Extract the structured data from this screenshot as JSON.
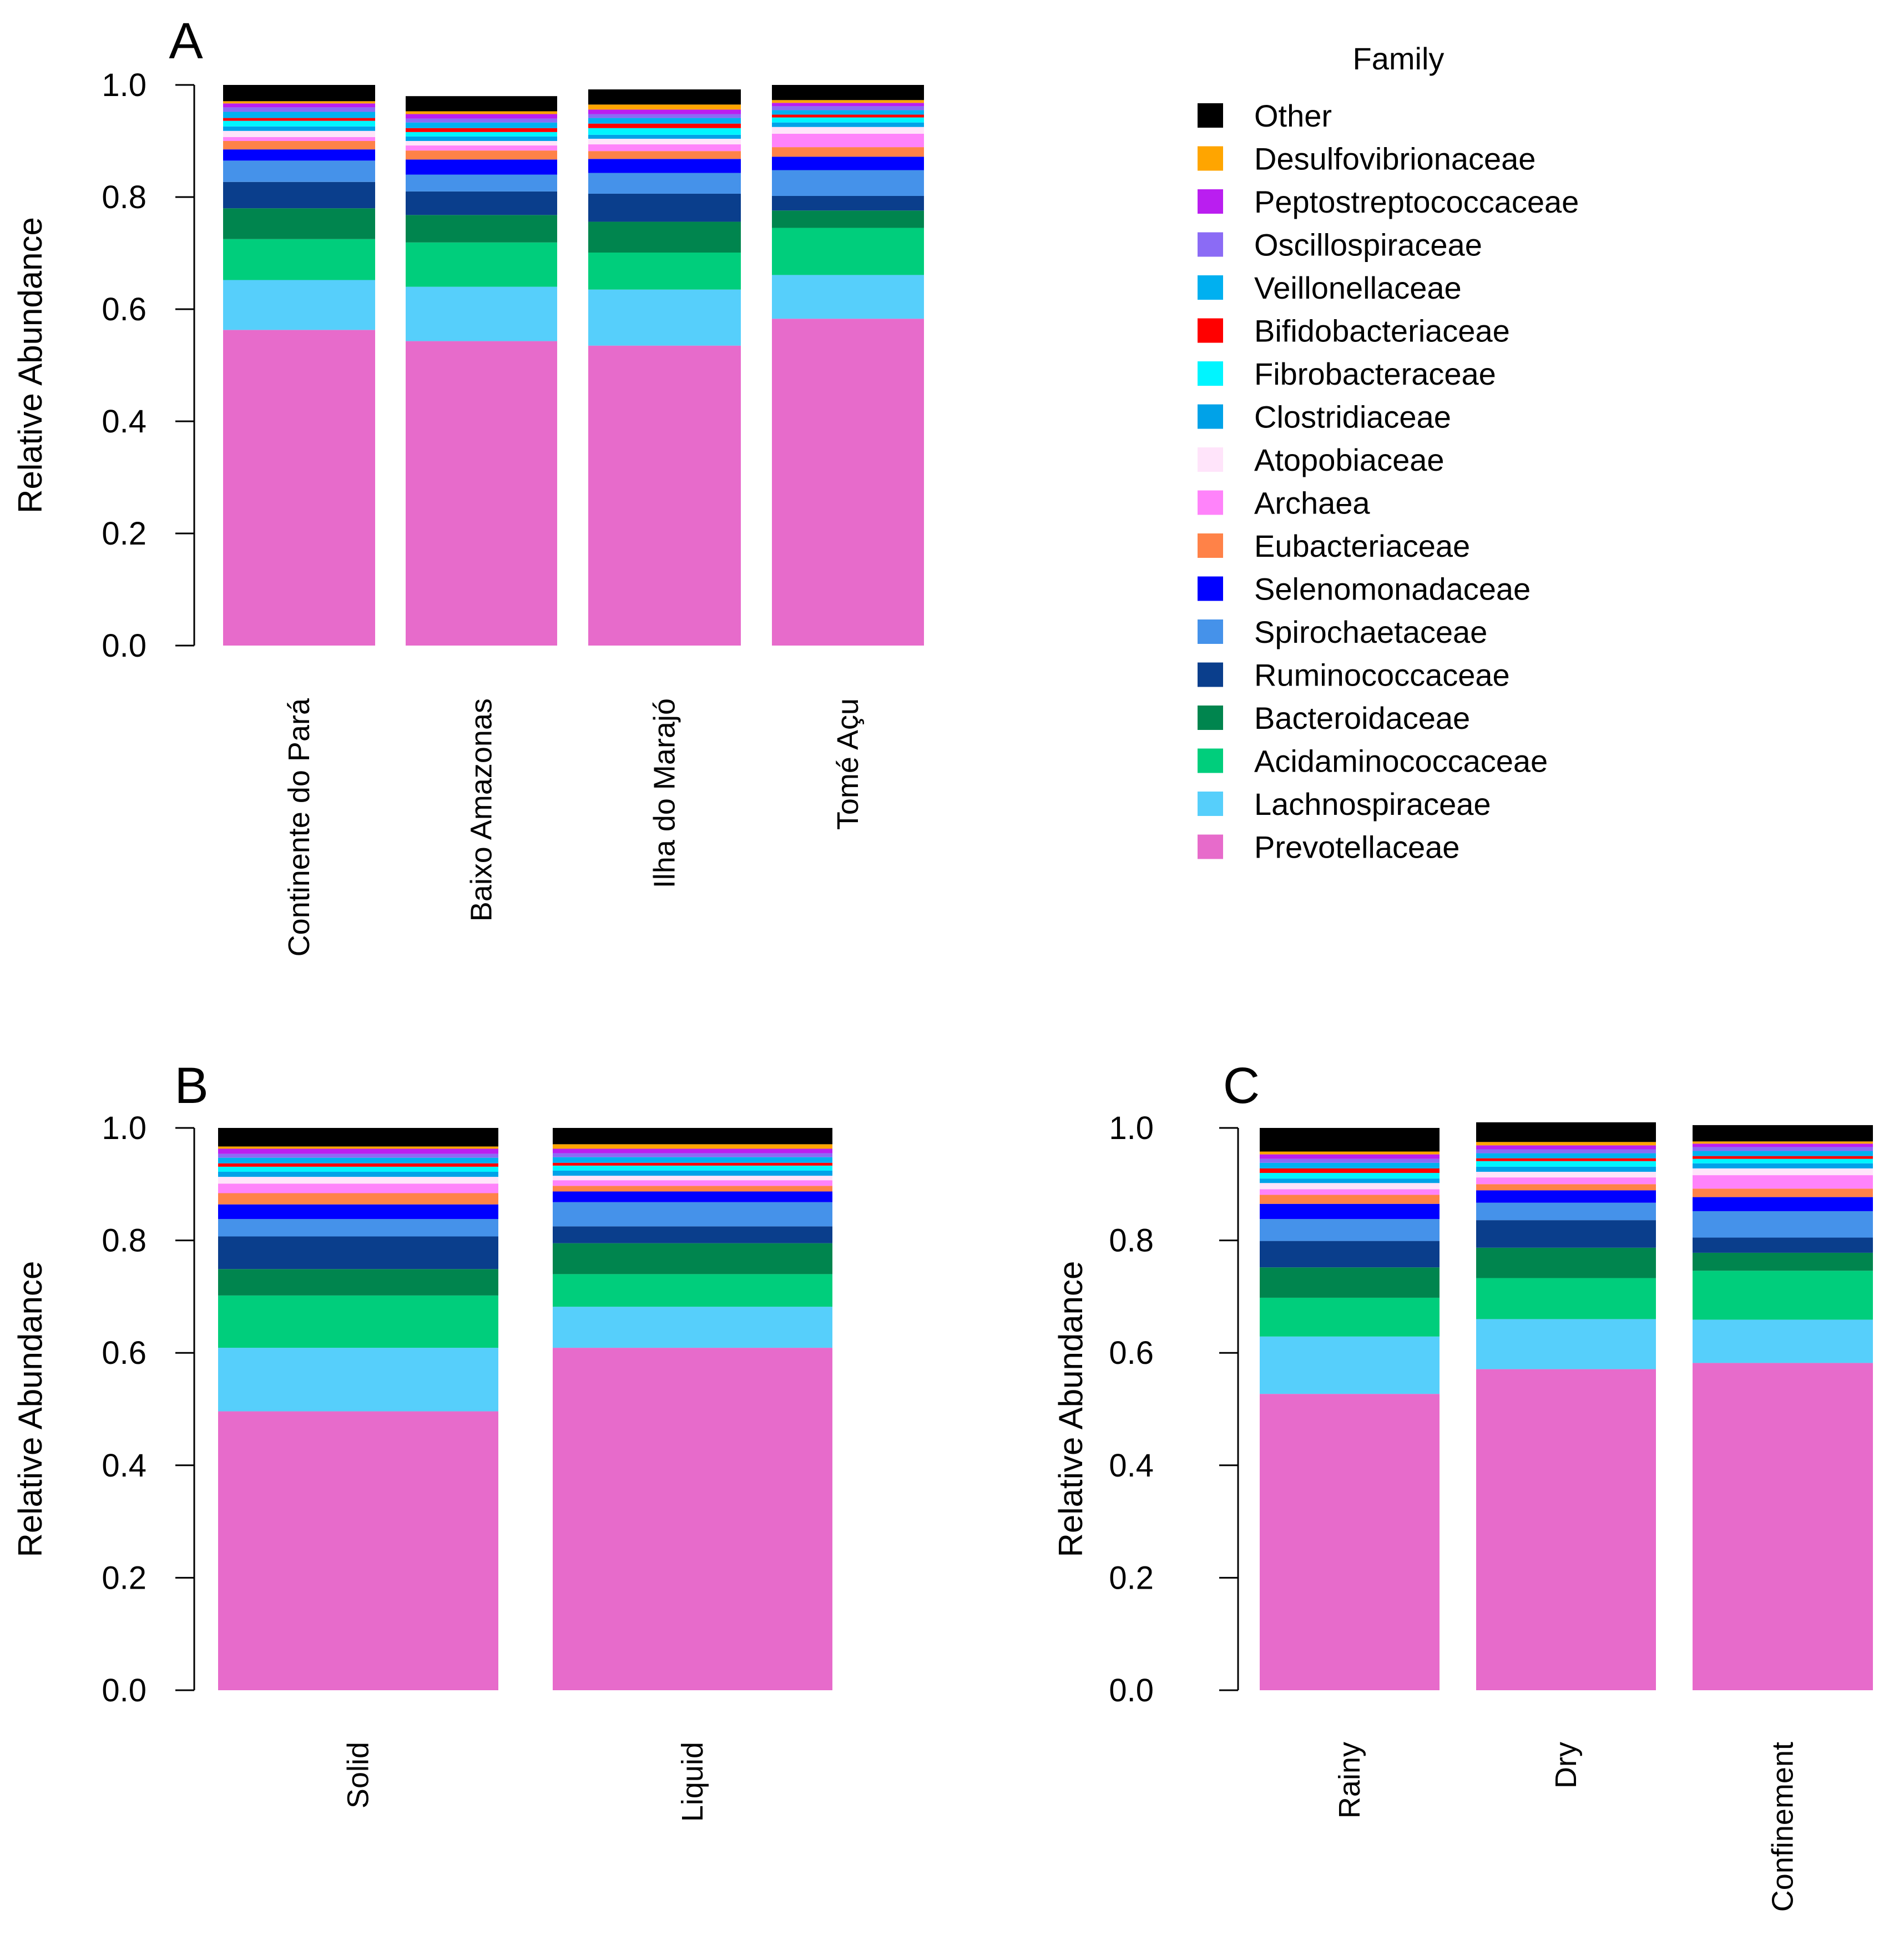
{
  "legend": {
    "title": "Family",
    "order": [
      "Other",
      "Desulfovibrionaceae",
      "Peptostreptococcaceae",
      "Oscillospiraceae",
      "Veillonellaceae",
      "Bifidobacteriaceae",
      "Fibrobacteraceae",
      "Clostridiaceae",
      "Atopobiaceae",
      "Archaea",
      "Eubacteriaceae",
      "Selenomonadaceae",
      "Spirochaetaceae",
      "Ruminococcaceae",
      "Bacteroidaceae",
      "Acidaminococcaceae",
      "Lachnospiraceae",
      "Prevotellaceae"
    ]
  },
  "colors": {
    "Prevotellaceae": "#E76BCB",
    "Lachnospiraceae": "#56CFFB",
    "Acidaminococcaceae": "#00CE7C",
    "Bacteroidaceae": "#00854E",
    "Ruminococcaceae": "#0A3E8C",
    "Spirochaetaceae": "#4592EA",
    "Selenomonadaceae": "#0000FF",
    "Eubacteriaceae": "#FF8248",
    "Archaea": "#FF83FA",
    "Atopobiaceae": "#FFE4FA",
    "Clostridiaceae": "#00A2E8",
    "Fibrobacteraceae": "#00F5FF",
    "Bifidobacteriaceae": "#FF0000",
    "Veillonellaceae": "#00B0F0",
    "Oscillospiraceae": "#8B6BF5",
    "Peptostreptococcaceae": "#BA1EF0",
    "Desulfovibrionaceae": "#FFA500",
    "Other": "#000000"
  },
  "chart_data": [
    {
      "type": "bar",
      "stacked": true,
      "panel": "A",
      "ylabel": "Relative Abundance",
      "ylim": [
        0,
        1.0
      ],
      "yticks": [
        "0.0",
        "0.2",
        "0.4",
        "0.6",
        "0.8",
        "1.0"
      ],
      "categories": [
        "Continente do Pará",
        "Baixo Amazonas",
        "Ilha do Marajó",
        "Tomé Açu"
      ],
      "series": [
        {
          "name": "Prevotellaceae",
          "values": [
            0.563,
            0.543,
            0.535,
            0.583
          ]
        },
        {
          "name": "Lachnospiraceae",
          "values": [
            0.089,
            0.097,
            0.1,
            0.078
          ]
        },
        {
          "name": "Acidaminococcaceae",
          "values": [
            0.073,
            0.079,
            0.066,
            0.084
          ]
        },
        {
          "name": "Bacteroidaceae",
          "values": [
            0.055,
            0.049,
            0.055,
            0.031
          ]
        },
        {
          "name": "Ruminococcaceae",
          "values": [
            0.047,
            0.042,
            0.05,
            0.026
          ]
        },
        {
          "name": "Spirochaetaceae",
          "values": [
            0.038,
            0.03,
            0.037,
            0.046
          ]
        },
        {
          "name": "Selenomonadaceae",
          "values": [
            0.02,
            0.027,
            0.025,
            0.024
          ]
        },
        {
          "name": "Eubacteriaceae",
          "values": [
            0.015,
            0.016,
            0.014,
            0.017
          ]
        },
        {
          "name": "Archaea",
          "values": [
            0.007,
            0.009,
            0.012,
            0.024
          ]
        },
        {
          "name": "Atopobiaceae",
          "values": [
            0.011,
            0.008,
            0.01,
            0.012
          ]
        },
        {
          "name": "Clostridiaceae",
          "values": [
            0.008,
            0.008,
            0.007,
            0.008
          ]
        },
        {
          "name": "Fibrobacteraceae",
          "values": [
            0.01,
            0.008,
            0.012,
            0.009
          ]
        },
        {
          "name": "Bifidobacteriaceae",
          "values": [
            0.005,
            0.007,
            0.008,
            0.005
          ]
        },
        {
          "name": "Veillonellaceae",
          "values": [
            0.011,
            0.01,
            0.01,
            0.008
          ]
        },
        {
          "name": "Oscillospiraceae",
          "values": [
            0.008,
            0.007,
            0.007,
            0.007
          ]
        },
        {
          "name": "Peptostreptococcaceae",
          "values": [
            0.007,
            0.008,
            0.008,
            0.006
          ]
        },
        {
          "name": "Desulfovibrionaceae",
          "values": [
            0.004,
            0.005,
            0.009,
            0.005
          ]
        },
        {
          "name": "Other",
          "values": [
            0.029,
            0.027,
            0.027,
            0.027
          ]
        }
      ]
    },
    {
      "type": "bar",
      "stacked": true,
      "panel": "B",
      "ylabel": "Relative Abundance",
      "ylim": [
        0,
        1.0
      ],
      "yticks": [
        "0.0",
        "0.2",
        "0.4",
        "0.6",
        "0.8",
        "1.0"
      ],
      "categories": [
        "Solid",
        "Liquid"
      ],
      "series": [
        {
          "name": "Prevotellaceae",
          "values": [
            0.496,
            0.609
          ]
        },
        {
          "name": "Lachnospiraceae",
          "values": [
            0.113,
            0.073
          ]
        },
        {
          "name": "Acidaminococcaceae",
          "values": [
            0.093,
            0.058
          ]
        },
        {
          "name": "Bacteroidaceae",
          "values": [
            0.047,
            0.055
          ]
        },
        {
          "name": "Ruminococcaceae",
          "values": [
            0.058,
            0.03
          ]
        },
        {
          "name": "Spirochaetaceae",
          "values": [
            0.031,
            0.043
          ]
        },
        {
          "name": "Selenomonadaceae",
          "values": [
            0.026,
            0.019
          ]
        },
        {
          "name": "Eubacteriaceae",
          "values": [
            0.02,
            0.01
          ]
        },
        {
          "name": "Archaea",
          "values": [
            0.017,
            0.01
          ]
        },
        {
          "name": "Atopobiaceae",
          "values": [
            0.012,
            0.008
          ]
        },
        {
          "name": "Clostridiaceae",
          "values": [
            0.009,
            0.009
          ]
        },
        {
          "name": "Fibrobacteraceae",
          "values": [
            0.009,
            0.009
          ]
        },
        {
          "name": "Bifidobacteriaceae",
          "values": [
            0.006,
            0.005
          ]
        },
        {
          "name": "Veillonellaceae",
          "values": [
            0.01,
            0.01
          ]
        },
        {
          "name": "Oscillospiraceae",
          "values": [
            0.007,
            0.007
          ]
        },
        {
          "name": "Peptostreptococcaceae",
          "values": [
            0.009,
            0.008
          ]
        },
        {
          "name": "Desulfovibrionaceae",
          "values": [
            0.004,
            0.008
          ]
        },
        {
          "name": "Other",
          "values": [
            0.033,
            0.029
          ]
        }
      ]
    },
    {
      "type": "bar",
      "stacked": true,
      "panel": "C",
      "ylabel": "Relative Abundance",
      "ylim": [
        0,
        1.0
      ],
      "yticks": [
        "0.0",
        "0.2",
        "0.4",
        "0.6",
        "0.8",
        "1.0"
      ],
      "categories": [
        "Rainy",
        "Dry",
        "Confinement"
      ],
      "series": [
        {
          "name": "Prevotellaceae",
          "values": [
            0.527,
            0.571,
            0.582
          ]
        },
        {
          "name": "Lachnospiraceae",
          "values": [
            0.102,
            0.089,
            0.077
          ]
        },
        {
          "name": "Acidaminococcaceae",
          "values": [
            0.069,
            0.073,
            0.087
          ]
        },
        {
          "name": "Bacteroidaceae",
          "values": [
            0.054,
            0.054,
            0.032
          ]
        },
        {
          "name": "Ruminococcaceae",
          "values": [
            0.047,
            0.049,
            0.027
          ]
        },
        {
          "name": "Spirochaetaceae",
          "values": [
            0.039,
            0.031,
            0.047
          ]
        },
        {
          "name": "Selenomonadaceae",
          "values": [
            0.027,
            0.022,
            0.025
          ]
        },
        {
          "name": "Eubacteriaceae",
          "values": [
            0.016,
            0.011,
            0.015
          ]
        },
        {
          "name": "Archaea",
          "values": [
            0.01,
            0.012,
            0.024
          ]
        },
        {
          "name": "Atopobiaceae",
          "values": [
            0.011,
            0.01,
            0.012
          ]
        },
        {
          "name": "Clostridiaceae",
          "values": [
            0.008,
            0.009,
            0.009
          ]
        },
        {
          "name": "Fibrobacteraceae",
          "values": [
            0.01,
            0.01,
            0.008
          ]
        },
        {
          "name": "Bifidobacteriaceae",
          "values": [
            0.008,
            0.005,
            0.005
          ]
        },
        {
          "name": "Veillonellaceae",
          "values": [
            0.01,
            0.009,
            0.009
          ]
        },
        {
          "name": "Oscillospiraceae",
          "values": [
            0.007,
            0.007,
            0.007
          ]
        },
        {
          "name": "Peptostreptococcaceae",
          "values": [
            0.008,
            0.007,
            0.006
          ]
        },
        {
          "name": "Desulfovibrionaceae",
          "values": [
            0.005,
            0.006,
            0.004
          ]
        },
        {
          "name": "Other",
          "values": [
            0.042,
            0.035,
            0.029
          ]
        }
      ]
    }
  ]
}
